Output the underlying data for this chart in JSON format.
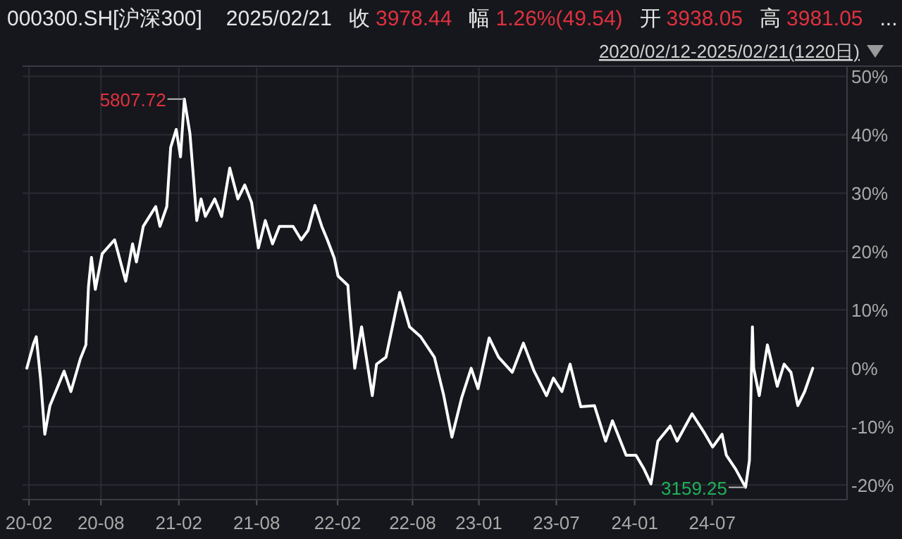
{
  "chart_data": {
    "type": "line",
    "title": "000300.SH[沪深300]",
    "subtitle": "2020/02/12-2025/02/21(1220日)",
    "annotations": [
      "2025/02/21",
      "收",
      "3978.44",
      "幅",
      "1.26%(49.54)",
      "开",
      "3938.05",
      "高",
      "3981.05",
      "...",
      {
        "text": "5807.72",
        "x": "2021-02-14",
        "y": 46.1
      },
      {
        "text": "3159.25",
        "x": "2024-09-17",
        "y": -20.4
      }
    ],
    "series": [
      {
        "color": "#ffffff",
        "x": [
          "2020-02-12",
          "2020-02-28",
          "2020-03-05",
          "2020-03-15",
          "2020-03-25",
          "2020-04-06",
          "2020-05-09",
          "2020-05-25",
          "2020-06-16",
          "2020-06-29",
          "2020-07-05",
          "2020-07-12",
          "2020-07-21",
          "2020-08-06",
          "2020-09-04",
          "2020-09-30",
          "2020-10-16",
          "2020-10-25",
          "2020-11-10",
          "2020-12-09",
          "2020-12-19",
          "2021-01-04",
          "2021-01-13",
          "2021-01-26",
          "2021-02-05",
          "2021-02-14",
          "2021-02-27",
          "2021-03-06",
          "2021-03-15",
          "2021-03-25",
          "2021-04-04",
          "2021-04-26",
          "2021-05-12",
          "2021-05-31",
          "2021-06-19",
          "2021-07-05",
          "2021-07-21",
          "2021-08-06",
          "2021-08-22",
          "2021-09-08",
          "2021-09-24",
          "2021-10-26",
          "2021-11-14",
          "2021-11-30",
          "2021-12-16",
          "2022-01-01",
          "2022-01-14",
          "2022-01-30",
          "2022-02-08",
          "2022-03-03",
          "2022-03-06",
          "2022-03-19",
          "2022-04-04",
          "2022-04-29",
          "2022-05-09",
          "2022-05-31",
          "2022-07-02",
          "2022-07-25",
          "2022-08-20",
          "2022-09-21",
          "2022-10-13",
          "2022-11-01",
          "2022-11-24",
          "2022-12-16",
          "2023-01-01",
          "2023-01-27",
          "2023-02-18",
          "2023-03-22",
          "2023-04-17",
          "2023-05-12",
          "2023-06-10",
          "2023-06-26",
          "2023-07-16",
          "2023-08-04",
          "2023-08-29",
          "2023-09-30",
          "2023-10-26",
          "2023-11-11",
          "2023-12-13",
          "2024-01-05",
          "2024-01-24",
          "2024-02-09",
          "2024-02-25",
          "2024-03-25",
          "2024-04-10",
          "2024-05-15",
          "2024-06-13",
          "2024-07-02",
          "2024-07-24",
          "2024-08-03",
          "2024-08-25",
          "2024-09-17",
          "2024-09-26",
          "2024-10-03",
          "2024-10-06",
          "2024-10-19",
          "2024-11-07",
          "2024-11-30",
          "2024-12-16",
          "2025-01-01",
          "2025-01-17",
          "2025-02-02",
          "2025-02-21"
        ],
        "values": [
          0,
          4.3,
          5.4,
          -1.7,
          -11.3,
          -6.4,
          -0.5,
          -4,
          1.6,
          4,
          14,
          19,
          13.5,
          19.6,
          22,
          14.9,
          21.3,
          18.2,
          24.3,
          27.7,
          24.3,
          27.7,
          37.8,
          40.9,
          36.2,
          46.1,
          40.2,
          33.8,
          25.3,
          29,
          26,
          29,
          26,
          34.3,
          29,
          31.4,
          28.4,
          20.6,
          25.3,
          21.3,
          24.3,
          24.3,
          22,
          23.6,
          27.9,
          24.3,
          22,
          18.9,
          15.8,
          14.2,
          11.1,
          0,
          7.1,
          -4.7,
          0.7,
          1.9,
          13,
          7.1,
          5.4,
          1.9,
          -4.7,
          -11.8,
          -5,
          0,
          -3.5,
          5.2,
          1.9,
          -0.7,
          4.3,
          -0.5,
          -4.7,
          -1.7,
          -4,
          0.7,
          -6.6,
          -6.4,
          -12.5,
          -9,
          -14.9,
          -14.9,
          -17.3,
          -19.8,
          -12.5,
          -9.9,
          -12.5,
          -7.8,
          -11.1,
          -13.5,
          -11.3,
          -14.9,
          -17.3,
          -20.4,
          -15.8,
          7.1,
          0,
          -4.7,
          4,
          -3.1,
          0.7,
          -0.7,
          -6.4,
          -4,
          0
        ]
      }
    ],
    "xlim": [
      "2020-02-02",
      "2025-05-12"
    ],
    "xticks": [
      {
        "value": "2020-02-17",
        "label": "20-02"
      },
      {
        "value": "2020-08-03",
        "label": "20-08"
      },
      {
        "value": "2021-02-01",
        "label": "21-02"
      },
      {
        "value": "2021-08-02",
        "label": "21-08"
      },
      {
        "value": "2022-02-07",
        "label": "22-02"
      },
      {
        "value": "2022-08-01",
        "label": "22-08"
      },
      {
        "value": "2023-01-03",
        "label": "23-01"
      },
      {
        "value": "2023-07-03",
        "label": "23-07"
      },
      {
        "value": "2024-01-02",
        "label": "24-01"
      },
      {
        "value": "2024-07-01",
        "label": "24-07"
      }
    ],
    "ylim": [
      -22.5,
      51.5
    ],
    "yticks": [
      {
        "value": 50,
        "label": "50%"
      },
      {
        "value": 40,
        "label": "40%"
      },
      {
        "value": 30,
        "label": "30%"
      },
      {
        "value": 20,
        "label": "20%"
      },
      {
        "value": 10,
        "label": "10%"
      },
      {
        "value": 0,
        "label": "0%"
      },
      {
        "value": -10,
        "label": "-10%"
      },
      {
        "value": -20,
        "label": "-20%"
      }
    ],
    "grid": true,
    "marker": "none",
    "line_style": "solid"
  }
}
